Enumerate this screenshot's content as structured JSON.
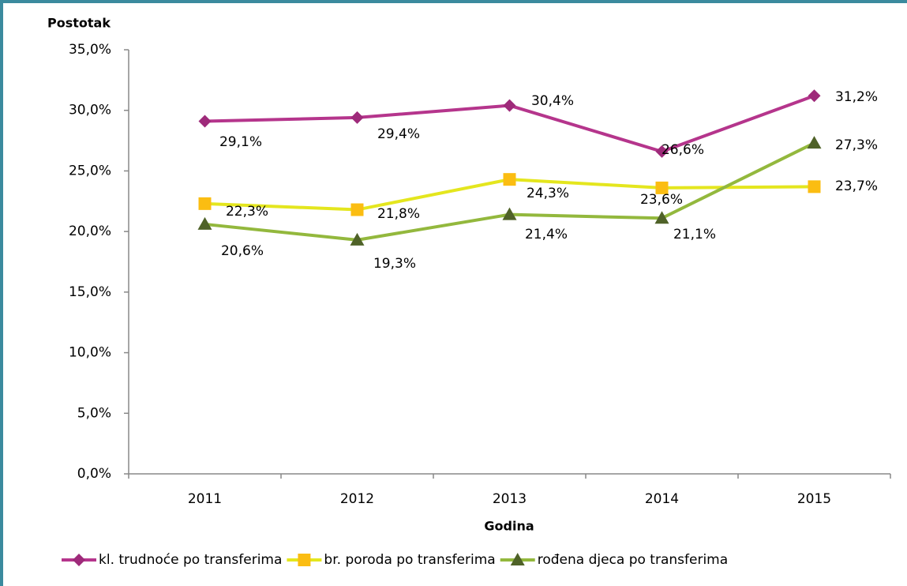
{
  "chart_data": {
    "type": "line",
    "y_axis_label": "Postotak",
    "x_axis_label": "Godina",
    "categories": [
      "2011",
      "2012",
      "2013",
      "2014",
      "2015"
    ],
    "series": [
      {
        "name": "kl. trudnoće po transferima",
        "color": "#b5358c",
        "marker_color": "#9e2a7a",
        "marker": "diamond",
        "values": [
          29.1,
          29.4,
          30.4,
          26.6,
          31.2
        ],
        "value_labels": [
          "29,1%",
          "29,4%",
          "30,4%",
          "26,6%",
          "31,2%"
        ]
      },
      {
        "name": "br. poroda po transferima",
        "color": "#e4e61e",
        "marker_color": "#fbbd12",
        "marker": "square",
        "values": [
          22.3,
          21.8,
          24.3,
          23.6,
          23.7
        ],
        "value_labels": [
          "22,3%",
          "21,8%",
          "24,3%",
          "23,6%",
          "23,7%"
        ]
      },
      {
        "name": "rođena djeca po transferima",
        "color": "#93b83d",
        "marker_color": "#4f6228",
        "marker": "triangle",
        "values": [
          20.6,
          19.3,
          21.4,
          21.1,
          27.3
        ],
        "value_labels": [
          "20,6%",
          "19,3%",
          "21,4%",
          "21,1%",
          "27,3%"
        ]
      }
    ],
    "ylim": [
      0,
      35
    ],
    "yticks": [
      {
        "value": 0,
        "label": "0,0%"
      },
      {
        "value": 5,
        "label": "5,0%"
      },
      {
        "value": 10,
        "label": "10,0%"
      },
      {
        "value": 15,
        "label": "15,0%"
      },
      {
        "value": 20,
        "label": "20,0%"
      },
      {
        "value": 25,
        "label": "25,0%"
      },
      {
        "value": 30,
        "label": "30,0%"
      },
      {
        "value": 35,
        "label": "35,0%"
      }
    ],
    "legend": "bottom"
  }
}
